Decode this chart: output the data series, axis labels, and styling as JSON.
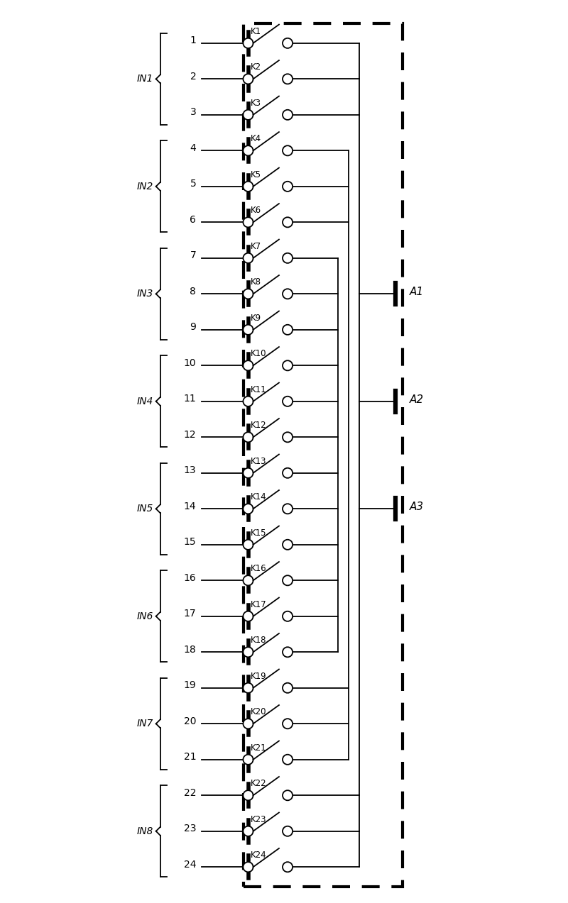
{
  "num_channels": 24,
  "groups": [
    {
      "label": "IN1",
      "channels": [
        1,
        2,
        3
      ]
    },
    {
      "label": "IN2",
      "channels": [
        4,
        5,
        6
      ]
    },
    {
      "label": "IN3",
      "channels": [
        7,
        8,
        9
      ]
    },
    {
      "label": "IN4",
      "channels": [
        10,
        11,
        12
      ]
    },
    {
      "label": "IN5",
      "channels": [
        13,
        14,
        15
      ]
    },
    {
      "label": "IN6",
      "channels": [
        16,
        17,
        18
      ]
    },
    {
      "label": "IN7",
      "channels": [
        19,
        20,
        21
      ]
    },
    {
      "label": "IN8",
      "channels": [
        22,
        23,
        24
      ]
    }
  ],
  "analog_outputs": [
    {
      "label": "A1",
      "channel": 8
    },
    {
      "label": "A2",
      "channel": 11
    },
    {
      "label": "A3",
      "channel": 14
    }
  ],
  "figsize": [
    8.0,
    12.73
  ],
  "dpi": 100,
  "background_color": "#ffffff",
  "line_color": "#000000"
}
